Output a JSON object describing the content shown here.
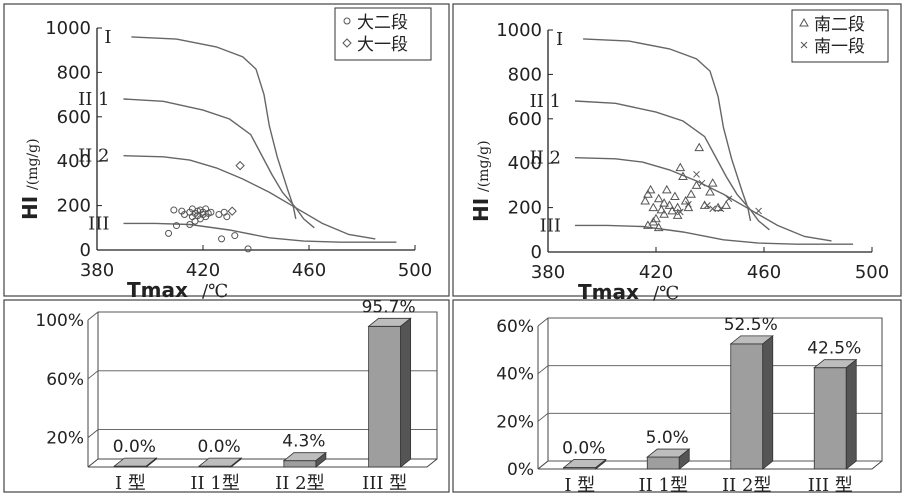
{
  "chart_data": [
    {
      "type": "scatter",
      "xlabel": "Tmax",
      "xlabel_unit": "/℃",
      "ylabel": "HI",
      "ylabel_unit": "/(mg/g)",
      "xlim": [
        380,
        500
      ],
      "ylim": [
        0,
        1000
      ],
      "xticks": [
        "380",
        "420",
        "460",
        "500"
      ],
      "yticks": [
        "0",
        "200",
        "400",
        "600",
        "800",
        "1000"
      ],
      "legend_placement": "top-right",
      "series": [
        {
          "name": "大二段",
          "marker": "circle",
          "points": [
            [
              409,
              180
            ],
            [
              412,
              175
            ],
            [
              413,
              160
            ],
            [
              415,
              170
            ],
            [
              416,
              150
            ],
            [
              416,
              185
            ],
            [
              417,
              165
            ],
            [
              418,
              175
            ],
            [
              418,
              155
            ],
            [
              419,
              180
            ],
            [
              420,
              160
            ],
            [
              420,
              170
            ],
            [
              421,
              185
            ],
            [
              421,
              150
            ],
            [
              422,
              165
            ],
            [
              419,
              140
            ],
            [
              417,
              130
            ],
            [
              415,
              115
            ],
            [
              423,
              170
            ],
            [
              426,
              160
            ],
            [
              428,
              170
            ],
            [
              429,
              150
            ],
            [
              407,
              75
            ],
            [
              410,
              110
            ],
            [
              427,
              50
            ],
            [
              432,
              65
            ],
            [
              437,
              5
            ]
          ]
        },
        {
          "name": "大一段",
          "marker": "diamond",
          "points": [
            [
              431,
              175
            ],
            [
              434,
              380
            ]
          ]
        }
      ],
      "boundaries": [
        {
          "label": "I",
          "points": [
            [
              393,
              960
            ],
            [
              410,
              950
            ],
            [
              425,
              915
            ],
            [
              435,
              870
            ],
            [
              440,
              815
            ],
            [
              443,
              700
            ],
            [
              445,
              560
            ],
            [
              448,
              420
            ],
            [
              452,
              270
            ],
            [
              454,
              200
            ],
            [
              455,
              140
            ]
          ]
        },
        {
          "label": "II 1",
          "points": [
            [
              390,
              680
            ],
            [
              405,
              670
            ],
            [
              420,
              630
            ],
            [
              430,
              590
            ],
            [
              438,
              520
            ],
            [
              442,
              430
            ],
            [
              446,
              340
            ],
            [
              450,
              260
            ],
            [
              455,
              190
            ],
            [
              458,
              140
            ],
            [
              462,
              100
            ]
          ]
        },
        {
          "label": "II 2",
          "points": [
            [
              390,
              425
            ],
            [
              405,
              420
            ],
            [
              415,
              405
            ],
            [
              425,
              370
            ],
            [
              435,
              320
            ],
            [
              445,
              260
            ],
            [
              455,
              190
            ],
            [
              465,
              120
            ],
            [
              475,
              70
            ],
            [
              485,
              50
            ]
          ]
        },
        {
          "label": "III",
          "points": [
            [
              390,
              120
            ],
            [
              402,
              120
            ],
            [
              415,
              115
            ],
            [
              430,
              90
            ],
            [
              445,
              55
            ],
            [
              458,
              40
            ],
            [
              472,
              35
            ],
            [
              493,
              35
            ]
          ]
        }
      ]
    },
    {
      "type": "scatter",
      "xlabel": "Tmax",
      "xlabel_unit": "/℃",
      "ylabel": "HI",
      "ylabel_unit": "/(mg/g)",
      "xlim": [
        380,
        500
      ],
      "ylim": [
        0,
        1000
      ],
      "xticks": [
        "380",
        "420",
        "460",
        "500"
      ],
      "yticks": [
        "0",
        "200",
        "400",
        "600",
        "800",
        "1000"
      ],
      "legend_placement": "top-right",
      "series": [
        {
          "name": "南二段",
          "marker": "triangle",
          "points": [
            [
              416,
              230
            ],
            [
              417,
              260
            ],
            [
              418,
              280
            ],
            [
              419,
              200
            ],
            [
              420,
              150
            ],
            [
              421,
              240
            ],
            [
              422,
              190
            ],
            [
              423,
              220
            ],
            [
              423,
              170
            ],
            [
              424,
              280
            ],
            [
              425,
              210
            ],
            [
              426,
              185
            ],
            [
              427,
              250
            ],
            [
              428,
              200
            ],
            [
              429,
              380
            ],
            [
              430,
              340
            ],
            [
              431,
              230
            ],
            [
              432,
              200
            ],
            [
              433,
              260
            ],
            [
              435,
              300
            ],
            [
              436,
              470
            ],
            [
              438,
              210
            ],
            [
              440,
              270
            ],
            [
              441,
              310
            ],
            [
              443,
              200
            ],
            [
              421,
              110
            ],
            [
              419,
              135
            ],
            [
              417,
              120
            ],
            [
              428,
              165
            ],
            [
              446,
              210
            ]
          ]
        },
        {
          "name": "南一段",
          "marker": "x",
          "points": [
            [
              429,
              180
            ],
            [
              432,
              215
            ],
            [
              435,
              350
            ],
            [
              437,
              310
            ],
            [
              439,
              210
            ],
            [
              441,
              195
            ],
            [
              444,
              195
            ],
            [
              447,
              240
            ],
            [
              458,
              185
            ]
          ]
        }
      ],
      "boundaries": [
        {
          "label": "I",
          "points": [
            [
              393,
              960
            ],
            [
              410,
              950
            ],
            [
              425,
              915
            ],
            [
              435,
              870
            ],
            [
              440,
              815
            ],
            [
              443,
              700
            ],
            [
              445,
              560
            ],
            [
              448,
              420
            ],
            [
              452,
              270
            ],
            [
              454,
              200
            ],
            [
              455,
              140
            ]
          ]
        },
        {
          "label": "II 1",
          "points": [
            [
              390,
              680
            ],
            [
              405,
              670
            ],
            [
              420,
              630
            ],
            [
              430,
              590
            ],
            [
              438,
              520
            ],
            [
              442,
              430
            ],
            [
              446,
              340
            ],
            [
              450,
              260
            ],
            [
              455,
              190
            ],
            [
              458,
              140
            ],
            [
              462,
              100
            ]
          ]
        },
        {
          "label": "II 2",
          "points": [
            [
              390,
              425
            ],
            [
              405,
              420
            ],
            [
              415,
              405
            ],
            [
              425,
              370
            ],
            [
              435,
              320
            ],
            [
              445,
              260
            ],
            [
              455,
              190
            ],
            [
              465,
              120
            ],
            [
              475,
              70
            ],
            [
              485,
              50
            ]
          ]
        },
        {
          "label": "III",
          "points": [
            [
              390,
              120
            ],
            [
              402,
              120
            ],
            [
              415,
              115
            ],
            [
              430,
              90
            ],
            [
              445,
              55
            ],
            [
              458,
              40
            ],
            [
              472,
              35
            ],
            [
              493,
              35
            ]
          ]
        }
      ]
    },
    {
      "type": "bar",
      "categories": [
        "I 型",
        "II 1型",
        "II 2型",
        "III 型"
      ],
      "values": [
        0.0,
        0.0,
        4.3,
        95.7
      ],
      "value_labels": [
        "0.0%",
        "0.0%",
        "4.3%",
        "95.7%"
      ],
      "yticks": [
        "20%",
        "60%",
        "100%"
      ],
      "ylim": [
        0,
        100
      ],
      "grid": true
    },
    {
      "type": "bar",
      "categories": [
        "I 型",
        "II 1型",
        "II 2型",
        "III 型"
      ],
      "values": [
        0.0,
        5.0,
        52.5,
        42.5
      ],
      "value_labels": [
        "0.0%",
        "5.0%",
        "52.5%",
        "42.5%"
      ],
      "yticks": [
        "0%",
        "20%",
        "40%",
        "60%"
      ],
      "ylim": [
        0,
        60
      ],
      "grid": true
    }
  ]
}
